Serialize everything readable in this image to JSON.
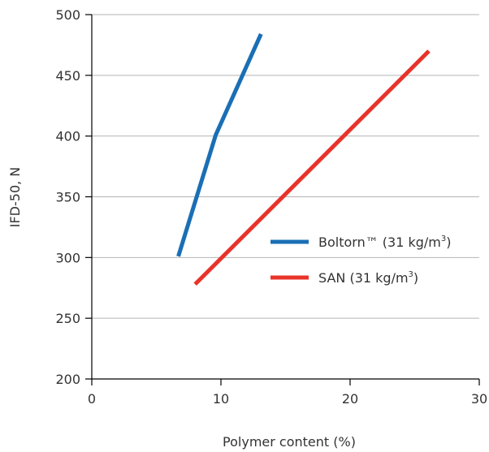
{
  "chart_data": {
    "type": "line",
    "xlabel": "Polymer content (%)",
    "ylabel": "IFD-50, N",
    "xlim": [
      0,
      30
    ],
    "ylim": [
      200,
      500
    ],
    "x_ticks": [
      0,
      10,
      20,
      30
    ],
    "y_ticks": [
      200,
      250,
      300,
      350,
      400,
      450,
      500
    ],
    "grid": "horizontal",
    "legend_position": "right",
    "series": [
      {
        "name": "Boltorn™ (31 kg/m³)",
        "label_main": "Boltorn™ (31 kg/m",
        "label_sup": "3",
        "label_end": ")",
        "color": "#1a6fb5",
        "points": [
          [
            6.7,
            301
          ],
          [
            9.6,
            401
          ],
          [
            13.1,
            484
          ]
        ]
      },
      {
        "name": "SAN (31 kg/m³)",
        "label_main": "SAN (31 kg/m",
        "label_sup": "3",
        "label_end": ")",
        "color": "#e8332a",
        "points": [
          [
            8.0,
            278
          ],
          [
            26.1,
            470
          ]
        ]
      }
    ]
  }
}
